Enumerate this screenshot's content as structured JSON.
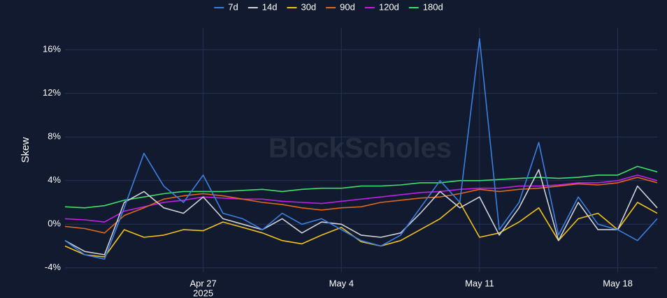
{
  "chart_data": {
    "type": "line",
    "watermark": "BlockScholes",
    "y_label": "Skew",
    "x": [
      "2025-04-20",
      "2025-04-21",
      "2025-04-22",
      "2025-04-23",
      "2025-04-24",
      "2025-04-25",
      "2025-04-26",
      "2025-04-27",
      "2025-04-28",
      "2025-04-29",
      "2025-04-30",
      "2025-05-01",
      "2025-05-02",
      "2025-05-03",
      "2025-05-04",
      "2025-05-05",
      "2025-05-06",
      "2025-05-07",
      "2025-05-08",
      "2025-05-09",
      "2025-05-10",
      "2025-05-11",
      "2025-05-12",
      "2025-05-13",
      "2025-05-14",
      "2025-05-15",
      "2025-05-16",
      "2025-05-17",
      "2025-05-18",
      "2025-05-19",
      "2025-05-20"
    ],
    "xlim": [
      "2025-04-20",
      "2025-05-20"
    ],
    "xticks": [
      {
        "value": "2025-04-27",
        "label": [
          "Apr 27",
          "2025"
        ]
      },
      {
        "value": "2025-05-04",
        "label": [
          "May 4"
        ]
      },
      {
        "value": "2025-05-11",
        "label": [
          "May 11"
        ]
      },
      {
        "value": "2025-05-18",
        "label": [
          "May 18"
        ]
      }
    ],
    "ylim": [
      -4.4,
      18
    ],
    "yticks": [
      {
        "value": -4,
        "label": "-4%"
      },
      {
        "value": 0,
        "label": "0%"
      },
      {
        "value": 4,
        "label": "4%"
      },
      {
        "value": 8,
        "label": "8%"
      },
      {
        "value": 12,
        "label": "12%"
      },
      {
        "value": 16,
        "label": "16%"
      }
    ],
    "grid": true,
    "legend": "top",
    "series": [
      {
        "name": "7d",
        "color": "#3d7fe0",
        "values": [
          -1.5,
          -2.8,
          -3.2,
          1.5,
          6.5,
          3.5,
          2.0,
          4.5,
          1.0,
          0.5,
          -0.5,
          1.0,
          0.0,
          0.5,
          -0.5,
          -1.5,
          -2.0,
          -1.0,
          1.5,
          4.0,
          2.0,
          17.0,
          -0.5,
          2.0,
          7.5,
          -1.0,
          2.5,
          0.0,
          -0.5,
          -1.5,
          0.5
        ]
      },
      {
        "name": "14d",
        "color": "#cfd2d8",
        "values": [
          -1.5,
          -2.5,
          -2.8,
          2.0,
          3.0,
          1.5,
          1.0,
          2.5,
          0.5,
          0.0,
          -0.5,
          0.5,
          -0.8,
          0.2,
          0.0,
          -1.0,
          -1.2,
          -0.8,
          1.0,
          3.0,
          1.5,
          2.5,
          -1.0,
          1.5,
          5.0,
          -1.5,
          2.0,
          -0.5,
          -0.5,
          3.5,
          1.5
        ]
      },
      {
        "name": "30d",
        "color": "#f2c21b",
        "values": [
          -2.0,
          -2.8,
          -3.0,
          -0.5,
          -1.2,
          -1.0,
          -0.5,
          -0.6,
          0.2,
          -0.3,
          -0.8,
          -1.5,
          -1.8,
          -1.0,
          -0.3,
          -1.6,
          -2.0,
          -1.5,
          -0.5,
          0.5,
          2.0,
          -1.2,
          -0.8,
          0.2,
          1.5,
          -1.5,
          0.5,
          1.0,
          -0.5,
          2.0,
          1.0
        ]
      },
      {
        "name": "90d",
        "color": "#e0691a",
        "values": [
          -0.2,
          -0.4,
          -0.8,
          0.8,
          1.5,
          2.3,
          2.6,
          2.8,
          2.6,
          2.3,
          2.0,
          1.8,
          1.5,
          1.3,
          1.5,
          1.6,
          2.0,
          2.2,
          2.4,
          2.5,
          2.8,
          3.2,
          3.0,
          3.2,
          3.3,
          3.5,
          3.7,
          3.6,
          3.8,
          4.3,
          3.8
        ]
      },
      {
        "name": "120d",
        "color": "#c41fe8",
        "values": [
          0.5,
          0.4,
          0.2,
          1.2,
          1.6,
          2.0,
          2.2,
          2.5,
          2.4,
          2.3,
          2.3,
          2.1,
          2.0,
          1.9,
          2.1,
          2.3,
          2.5,
          2.7,
          2.9,
          3.0,
          3.2,
          3.3,
          3.3,
          3.5,
          3.5,
          3.6,
          3.8,
          3.8,
          4.0,
          4.5,
          4.0
        ]
      },
      {
        "name": "180d",
        "color": "#3fe06a",
        "values": [
          1.6,
          1.5,
          1.7,
          2.2,
          2.5,
          2.8,
          3.0,
          3.0,
          3.0,
          3.1,
          3.2,
          3.0,
          3.2,
          3.3,
          3.3,
          3.5,
          3.5,
          3.6,
          3.8,
          3.8,
          4.0,
          4.0,
          4.1,
          4.2,
          4.3,
          4.2,
          4.3,
          4.5,
          4.5,
          5.3,
          4.8
        ]
      }
    ]
  }
}
